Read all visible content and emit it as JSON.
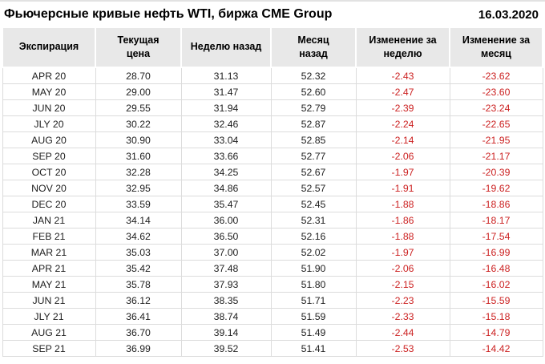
{
  "header": {
    "title": "Фьючерсные кривые нефть WTI, биржа CME Group",
    "date": "16.03.2020"
  },
  "colors": {
    "negative_text": "#cc2222",
    "header_bg": "#e8e8e8",
    "body_border": "#dcdcdc",
    "text": "#212121"
  },
  "chart_data": {
    "type": "table",
    "title": "Фьючерсные кривые нефть WTI, биржа CME Group",
    "date": "16.03.2020",
    "columns": [
      "Экспирация",
      "Текущая\nцена",
      "Неделю назад",
      "Месяц\nназад",
      "Изменение за\nнеделю",
      "Изменение за\nмесяц"
    ],
    "column_keys": [
      "expiration",
      "current-price",
      "week-ago",
      "month-ago",
      "change-week",
      "change-month"
    ],
    "rows": [
      [
        "APR 20",
        "28.70",
        "31.13",
        "52.32",
        "-2.43",
        "-23.62"
      ],
      [
        "MAY 20",
        "29.00",
        "31.47",
        "52.60",
        "-2.47",
        "-23.60"
      ],
      [
        "JUN 20",
        "29.55",
        "31.94",
        "52.79",
        "-2.39",
        "-23.24"
      ],
      [
        "JLY 20",
        "30.22",
        "32.46",
        "52.87",
        "-2.24",
        "-22.65"
      ],
      [
        "AUG 20",
        "30.90",
        "33.04",
        "52.85",
        "-2.14",
        "-21.95"
      ],
      [
        "SEP 20",
        "31.60",
        "33.66",
        "52.77",
        "-2.06",
        "-21.17"
      ],
      [
        "OCT 20",
        "32.28",
        "34.25",
        "52.67",
        "-1.97",
        "-20.39"
      ],
      [
        "NOV 20",
        "32.95",
        "34.86",
        "52.57",
        "-1.91",
        "-19.62"
      ],
      [
        "DEC 20",
        "33.59",
        "35.47",
        "52.45",
        "-1.88",
        "-18.86"
      ],
      [
        "JAN 21",
        "34.14",
        "36.00",
        "52.31",
        "-1.86",
        "-18.17"
      ],
      [
        "FEB 21",
        "34.62",
        "36.50",
        "52.16",
        "-1.88",
        "-17.54"
      ],
      [
        "MAR 21",
        "35.03",
        "37.00",
        "52.02",
        "-1.97",
        "-16.99"
      ],
      [
        "APR 21",
        "35.42",
        "37.48",
        "51.90",
        "-2.06",
        "-16.48"
      ],
      [
        "MAY 21",
        "35.78",
        "37.93",
        "51.80",
        "-2.15",
        "-16.02"
      ],
      [
        "JUN 21",
        "36.12",
        "38.35",
        "51.71",
        "-2.23",
        "-15.59"
      ],
      [
        "JLY 21",
        "36.41",
        "38.74",
        "51.59",
        "-2.33",
        "-15.18"
      ],
      [
        "AUG 21",
        "36.70",
        "39.14",
        "51.49",
        "-2.44",
        "-14.79"
      ],
      [
        "SEP 21",
        "36.99",
        "39.52",
        "51.41",
        "-2.53",
        "-14.42"
      ]
    ]
  }
}
